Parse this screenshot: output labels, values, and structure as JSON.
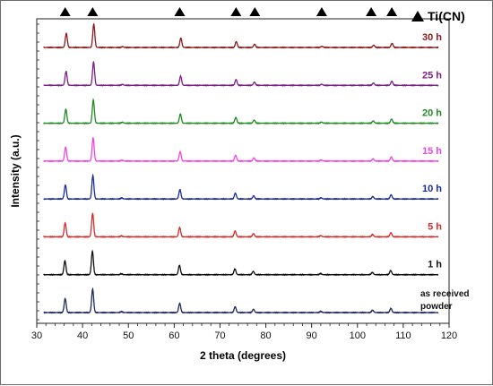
{
  "chart_data": {
    "type": "line",
    "xlabel": "2 theta (degrees)",
    "ylabel": "Intensity (a.u.)",
    "xlim": [
      30,
      120
    ],
    "x_ticks": [
      30,
      40,
      50,
      60,
      70,
      80,
      90,
      100,
      110,
      120
    ],
    "y_ticks_shown": false,
    "grid": false,
    "legend": {
      "label": "Ti(CN)",
      "marker": "filled-triangle",
      "placement": "top-right"
    },
    "marker_positions": [
      36.2,
      42.2,
      61.2,
      73.5,
      77.6,
      92.2,
      103.0,
      107.5
    ],
    "peaks": [
      {
        "x": 36.2,
        "rel": 0.6
      },
      {
        "x": 42.2,
        "rel": 1.0
      },
      {
        "x": 48.5,
        "rel": 0.04
      },
      {
        "x": 61.2,
        "rel": 0.4
      },
      {
        "x": 73.3,
        "rel": 0.25
      },
      {
        "x": 77.3,
        "rel": 0.14
      },
      {
        "x": 92.0,
        "rel": 0.05
      },
      {
        "x": 103.3,
        "rel": 0.1
      },
      {
        "x": 107.3,
        "rel": 0.18
      }
    ],
    "series": [
      {
        "name": "30 h",
        "color": "#8b1a1a",
        "shift": 0.25,
        "label_lines": [
          "30 h"
        ]
      },
      {
        "name": "25 h",
        "color": "#7b1f86",
        "shift": 0.2,
        "label_lines": [
          "25 h"
        ]
      },
      {
        "name": "20 h",
        "color": "#1f8b22",
        "shift": 0.15,
        "label_lines": [
          "20 h"
        ]
      },
      {
        "name": "15 h",
        "color": "#ee44e4",
        "shift": 0.1,
        "label_lines": [
          "15 h"
        ]
      },
      {
        "name": "10 h",
        "color": "#1a2c9c",
        "shift": 0.05,
        "label_lines": [
          "10 h"
        ]
      },
      {
        "name": "5 h",
        "color": "#d62b2b",
        "shift": 0.0,
        "label_lines": [
          "5 h"
        ]
      },
      {
        "name": "1 h",
        "color": "#111111",
        "shift": -0.05,
        "label_lines": [
          "1 h"
        ]
      },
      {
        "name": "as received powder",
        "color": "#1c2a5e",
        "shift": 0.0,
        "label_lines": [
          "as received",
          "powder"
        ]
      }
    ]
  }
}
